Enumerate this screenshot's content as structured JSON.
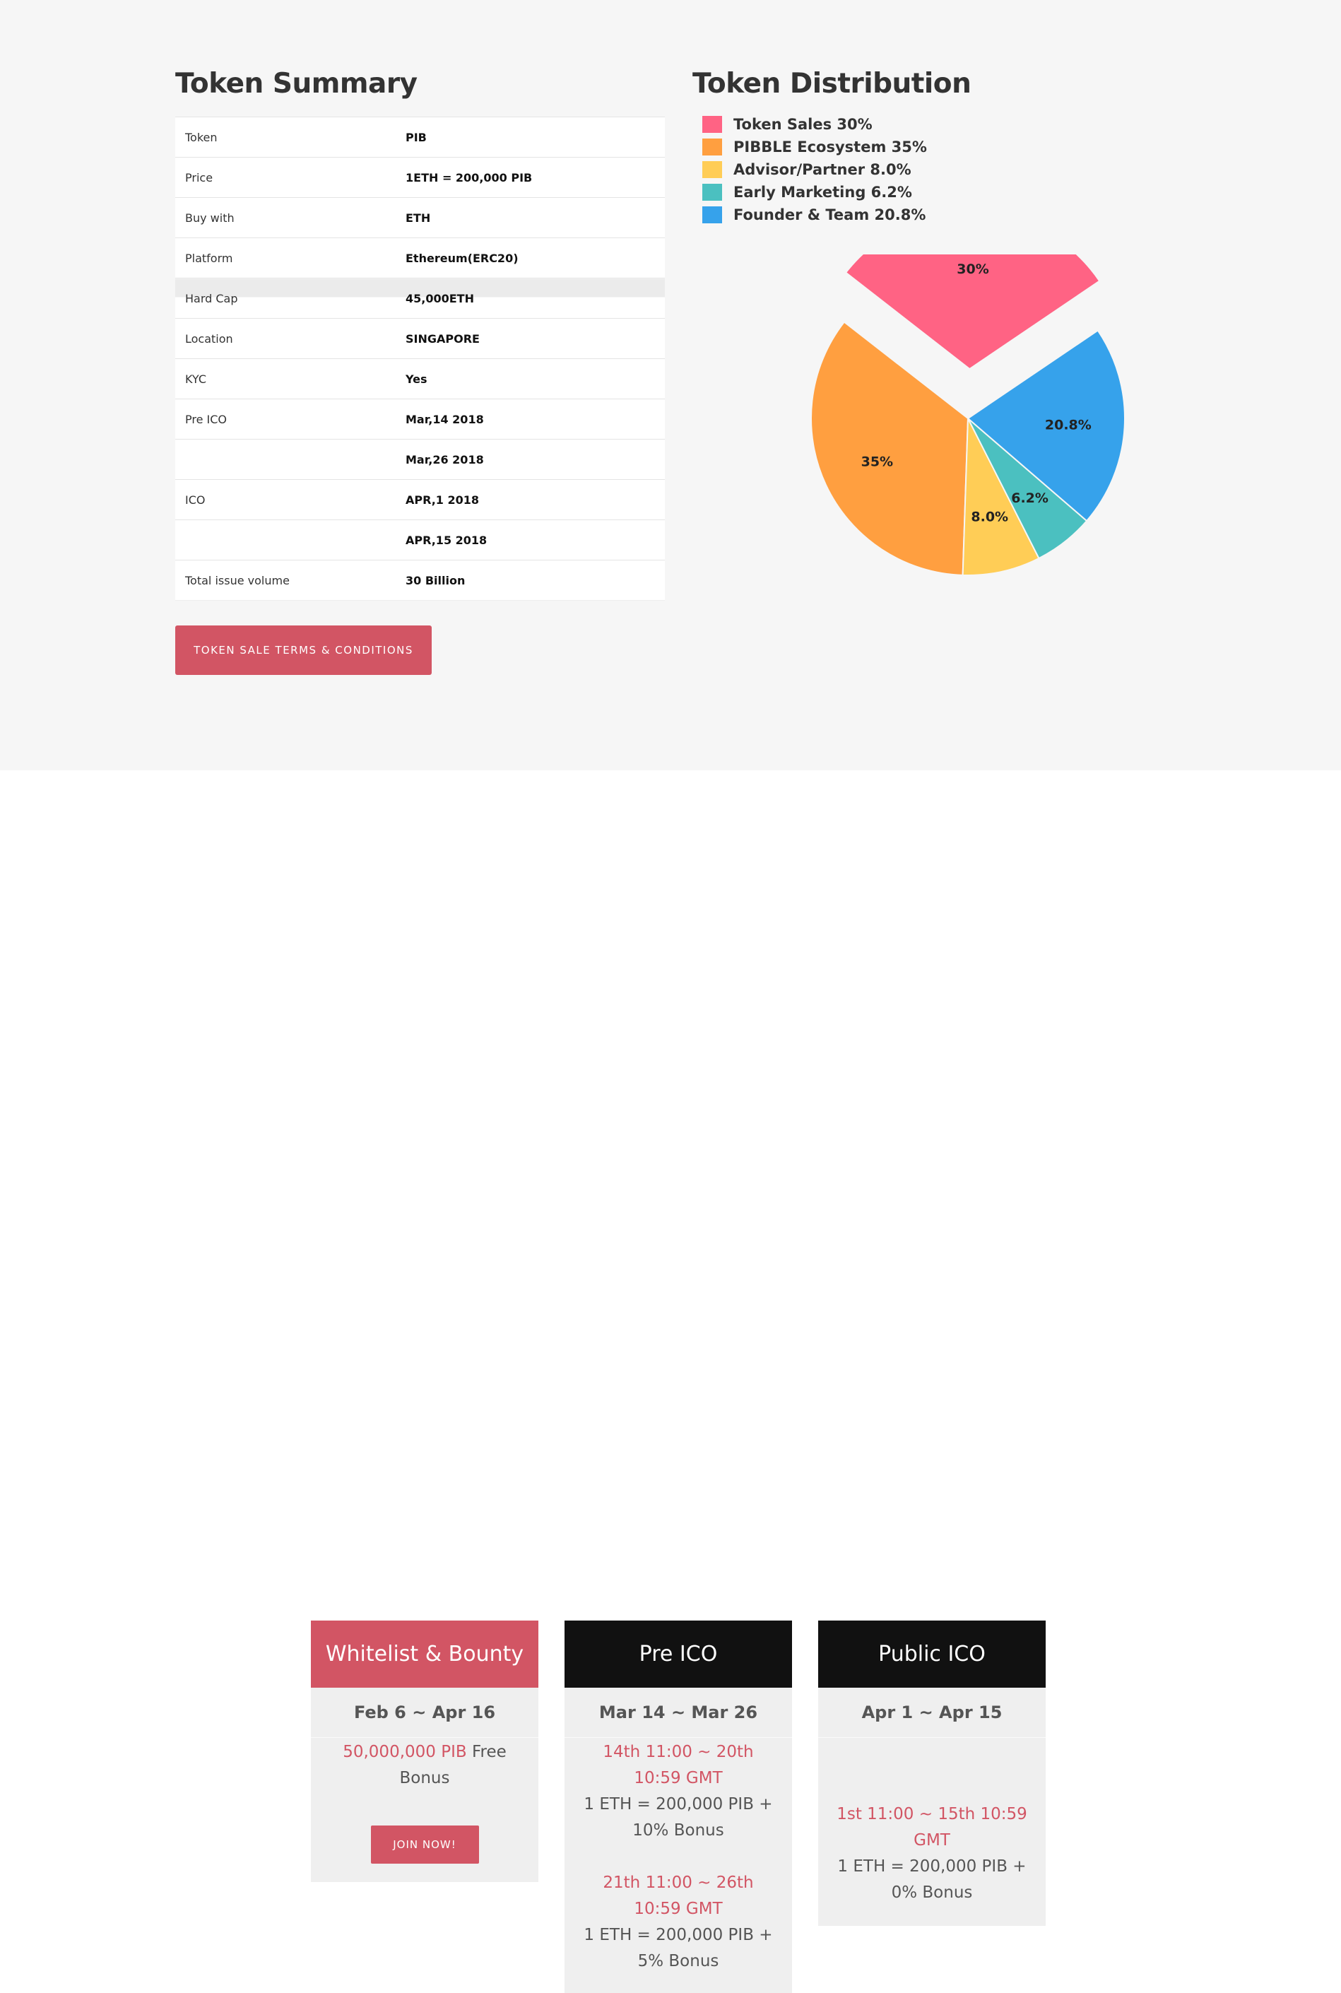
{
  "summary": {
    "title": "Token Summary",
    "rows": [
      {
        "label": "Token",
        "value": "PIB"
      },
      {
        "label": "Price",
        "value": "1ETH = 200,000 PIB"
      },
      {
        "label": "Buy with",
        "value": "ETH"
      },
      {
        "label": "Platform",
        "value": "Ethereum(ERC20)"
      },
      {
        "label": "Hard Cap",
        "value": "45,000ETH"
      },
      {
        "label": "Location",
        "value": "SINGAPORE"
      },
      {
        "label": "KYC",
        "value": "Yes"
      },
      {
        "label": "Pre ICO",
        "value": "Mar,14  2018"
      },
      {
        "label": "",
        "value": "Mar,26  2018"
      },
      {
        "label": "ICO",
        "value": "APR,1  2018"
      },
      {
        "label": "",
        "value": "APR,15  2018"
      },
      {
        "label": "Total issue volume",
        "value": "30 Billion"
      }
    ],
    "terms_button": "TOKEN SALE TERMS & CONDITIONS"
  },
  "distribution": {
    "title": "Token Distribution",
    "legend": [
      {
        "label": "Token Sales 30%"
      },
      {
        "label": "PIBBLE Ecosystem 35%"
      },
      {
        "label": "Advisor/Partner 8.0%"
      },
      {
        "label": "Early Marketing 6.2%"
      },
      {
        "label": "Founder & Team 20.8%"
      }
    ]
  },
  "chart_data": {
    "type": "pie",
    "title": "Token Distribution",
    "categories": [
      "Token Sales",
      "PIBBLE Ecosystem",
      "Advisor/Partner",
      "Early Marketing",
      "Founder & Team"
    ],
    "values": [
      30,
      35,
      8.0,
      6.2,
      20.8
    ],
    "slice_labels": [
      "30%",
      "35%",
      "8.0%",
      "6.2%",
      "20.8%"
    ],
    "colors": [
      "#ff6384",
      "#ff9f40",
      "#ffcd56",
      "#4bc0c0",
      "#36a2eb"
    ],
    "exploded": [
      "Token Sales"
    ],
    "legend_position": "top-left"
  },
  "phases": [
    {
      "title": "Whitelist & Bounty",
      "dates": "Feb 6 ~ Apr 16",
      "amount": "50,000,000 PIB",
      "amount_suffix": "Free Bonus",
      "button": "JOIN NOW!"
    },
    {
      "title": "Pre ICO",
      "dates": "Mar 14 ~ Mar 26",
      "rounds": [
        {
          "time": "14th 11:00 ~ 20th 10:59 GMT",
          "rate": "1 ETH = 200,000 PIB + 10% Bonus"
        },
        {
          "time": "21th 11:00 ~ 26th 10:59 GMT",
          "rate": "1 ETH = 200,000 PIB + 5% Bonus"
        }
      ]
    },
    {
      "title": "Public ICO",
      "dates": "Apr 1 ~ Apr 15",
      "rounds": [
        {
          "time": "1st 11:00 ~ 15th 10:59 GMT",
          "rate": "1 ETH = 200,000 PIB + 0% Bonus"
        }
      ]
    }
  ],
  "colors": {
    "accent": "#d25564",
    "dark": "#111111",
    "card_bg": "#efefef",
    "section_bg": "#f6f6f6"
  }
}
